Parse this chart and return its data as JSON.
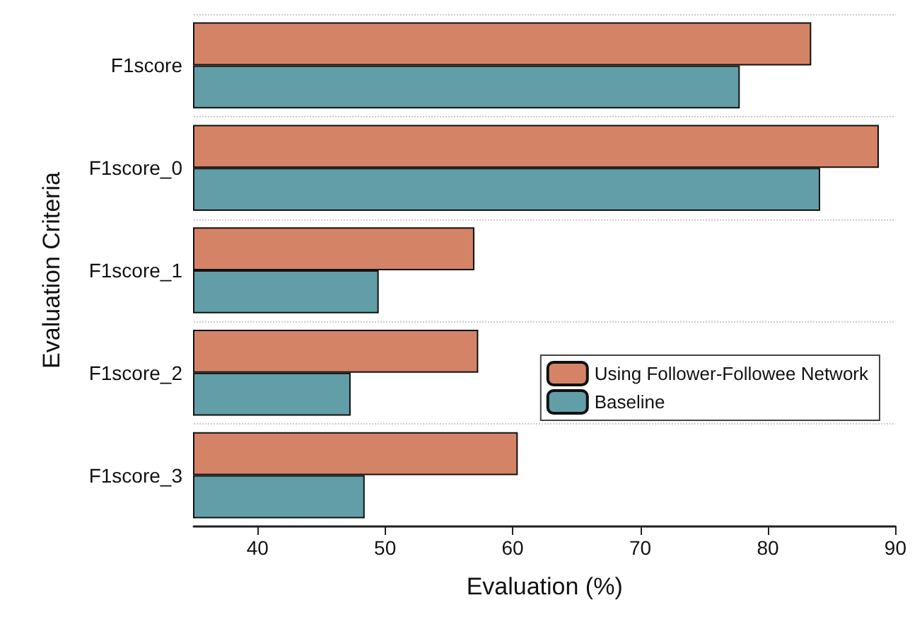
{
  "chart_data": {
    "type": "bar",
    "orientation": "horizontal",
    "xlabel": "Evaluation (%)",
    "ylabel": "Evaluation Criteria",
    "categories": [
      "F1score",
      "F1score_0",
      "F1score_1",
      "F1score_2",
      "F1score_3"
    ],
    "series": [
      {
        "name": "Using Follower-Followee Network",
        "color": "#d48367",
        "values": [
          83.4,
          88.7,
          57.0,
          57.3,
          60.4
        ]
      },
      {
        "name": "Baseline",
        "color": "#629ea8",
        "values": [
          77.8,
          84.1,
          49.5,
          47.3,
          48.4
        ]
      }
    ],
    "xlim": [
      35,
      90
    ],
    "xticks": [
      40,
      50,
      60,
      70,
      80,
      90
    ],
    "grid": "y",
    "legend": "right"
  }
}
